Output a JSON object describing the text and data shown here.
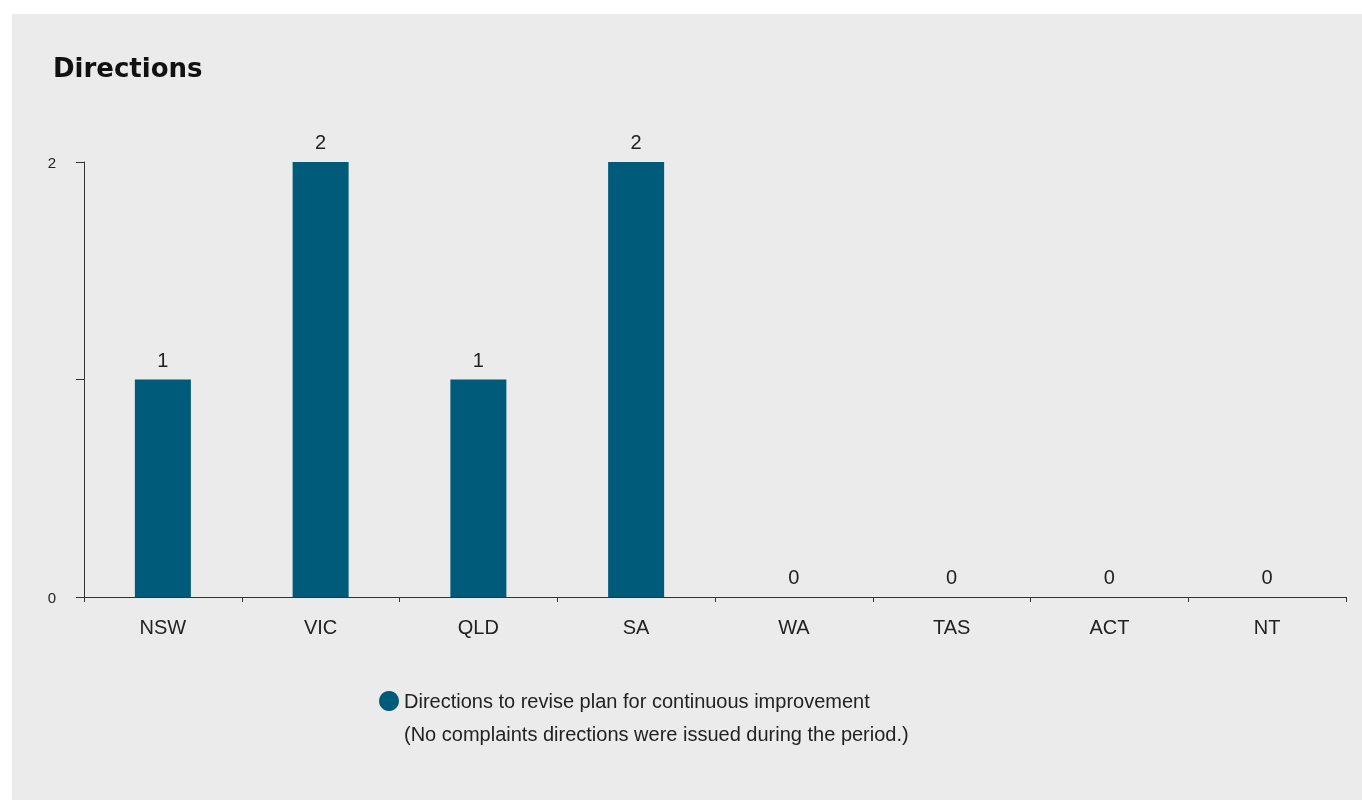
{
  "chart_data": {
    "type": "bar",
    "title": "Directions",
    "categories": [
      "NSW",
      "VIC",
      "QLD",
      "SA",
      "WA",
      "TAS",
      "ACT",
      "NT"
    ],
    "series": [
      {
        "name": "Directions to revise plan for continuous improvement",
        "color": "#005a7a",
        "values": [
          1,
          2,
          1,
          2,
          0,
          0,
          0,
          0
        ]
      }
    ],
    "ylim": [
      0,
      2
    ],
    "yticks": [
      0,
      {
        "value": 1,
        "label": null
      },
      2
    ],
    "data_labels": true,
    "grid": false,
    "legend": "bottom",
    "annotations": [
      "(No complaints directions were issued during the period.)"
    ]
  }
}
